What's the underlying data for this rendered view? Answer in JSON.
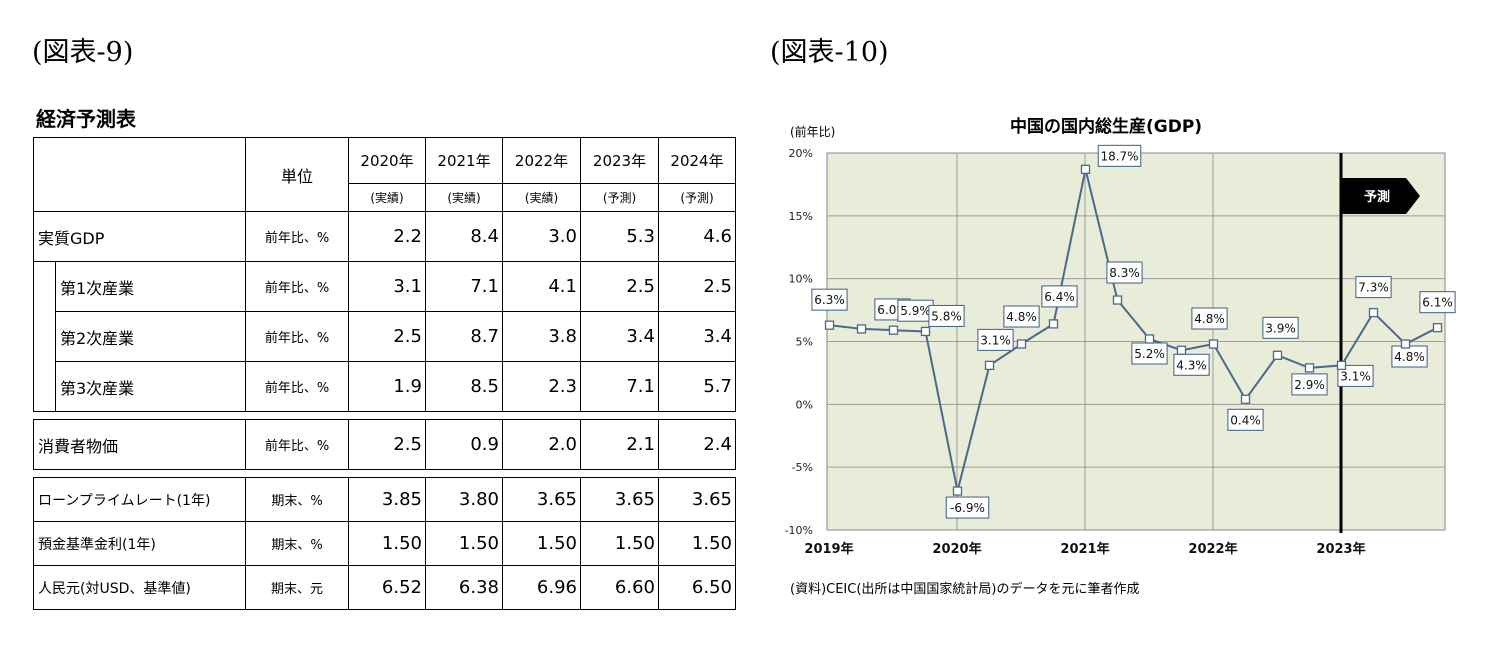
{
  "figure_labels": {
    "left": "(図表-9)",
    "right": "(図表-10)"
  },
  "table": {
    "title": "経済予測表",
    "unit_header": "単位",
    "years": [
      "2020年",
      "2021年",
      "2022年",
      "2023年",
      "2024年"
    ],
    "year_notes": [
      "(実績)",
      "(実績)",
      "(実績)",
      "(予測)",
      "(予測)"
    ],
    "rows": [
      {
        "label": "実質GDP",
        "unit": "前年比、%",
        "values": [
          "2.2",
          "8.4",
          "3.0",
          "5.3",
          "4.6"
        ]
      },
      {
        "label": "第1次産業",
        "unit": "前年比、%",
        "values": [
          "3.1",
          "7.1",
          "4.1",
          "2.5",
          "2.5"
        ]
      },
      {
        "label": "第2次産業",
        "unit": "前年比、%",
        "values": [
          "2.5",
          "8.7",
          "3.8",
          "3.4",
          "3.4"
        ]
      },
      {
        "label": "第3次産業",
        "unit": "前年比、%",
        "values": [
          "1.9",
          "8.5",
          "2.3",
          "7.1",
          "5.7"
        ]
      },
      {
        "label": "消費者物価",
        "unit": "前年比、%",
        "values": [
          "2.5",
          "0.9",
          "2.0",
          "2.1",
          "2.4"
        ]
      },
      {
        "label": "ローンプライムレート(1年)",
        "unit": "期末、%",
        "values": [
          "3.85",
          "3.80",
          "3.65",
          "3.65",
          "3.65"
        ]
      },
      {
        "label": "預金基準金利(1年)",
        "unit": "期末、%",
        "values": [
          "1.50",
          "1.50",
          "1.50",
          "1.50",
          "1.50"
        ]
      },
      {
        "label": "人民元(対USD、基準値)",
        "unit": "期末、元",
        "values": [
          "6.52",
          "6.38",
          "6.96",
          "6.60",
          "6.50"
        ]
      }
    ]
  },
  "chart_data": {
    "type": "line",
    "title": "中国の国内総生産(GDP)",
    "ylabel": "(前年比)",
    "ylim": [
      -10,
      20
    ],
    "yticks": [
      "20%",
      "15%",
      "10%",
      "5%",
      "0%",
      "-5%",
      "-10%"
    ],
    "xticks": [
      "2019年",
      "2020年",
      "2021年",
      "2022年",
      "2023年"
    ],
    "forecast_label": "予測",
    "series": [
      {
        "values": [
          6.3,
          6.0,
          5.9,
          5.8,
          -6.9,
          3.1,
          4.8,
          6.4,
          18.7,
          8.3,
          5.2,
          4.3,
          4.8,
          0.4,
          3.9,
          2.9,
          3.1,
          7.3,
          4.8,
          6.1
        ],
        "labels": [
          "6.3%",
          "6.0%",
          "5.9%",
          "5.8%",
          "-6.9%",
          "3.1%",
          "4.8%",
          "6.4%",
          "18.7%",
          "8.3%",
          "5.2%",
          "4.3%",
          "4.8%",
          "0.4%",
          "3.9%",
          "2.9%",
          "3.1%",
          "7.3%",
          "4.8%",
          "6.1%"
        ]
      }
    ],
    "line_color": "#4a6a8a",
    "plot_bg": "#e9ecd9",
    "grid": true
  },
  "source_note": "(資料)CEIC(出所は中国国家統計局)のデータを元に筆者作成"
}
